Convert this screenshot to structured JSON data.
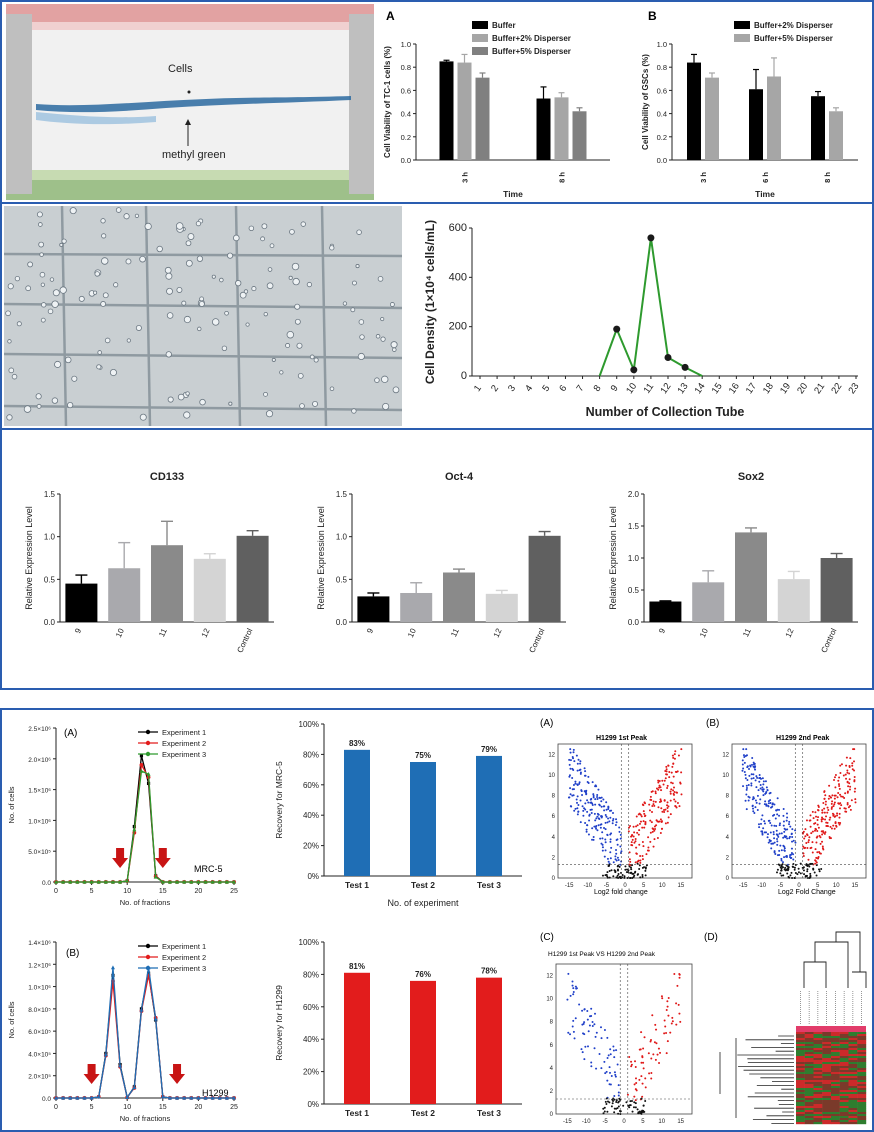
{
  "figure_top": {
    "gel_photo": {
      "cells_label": "Cells",
      "methyl_label": "methyl green"
    },
    "panelA_letter": "A",
    "panelB_letter": "B"
  },
  "figure_bottom": {
    "A_letter": "(A)",
    "B_letter": "(B)",
    "C_letter": "(C)",
    "D_letter": "(D)",
    "mrc_label": "MRC-5",
    "h1299_label": "H1299",
    "volcano_titles": [
      "H1299 1st Peak",
      "H1299 2nd Peak",
      "H1299 1st Peak VS H1299 2nd Peak"
    ],
    "volcano_xlabels": [
      "Log2 fold change",
      "Log2 Fold Change"
    ]
  },
  "colors": {
    "frame": "#2a5db0",
    "green": "#2e9a2e",
    "blue": "#1f6eb5",
    "red": "#e21c1c"
  },
  "chart_data": [
    {
      "id": "tc1",
      "type": "bar",
      "categories": [
        "3 h",
        "8 h"
      ],
      "series": [
        {
          "name": "Buffer",
          "color": "#000000",
          "values": [
            0.85,
            0.53
          ],
          "errors": [
            0.01,
            0.1
          ]
        },
        {
          "name": "Buffer+2% Disperser",
          "color": "#a6a6a6",
          "values": [
            0.84,
            0.54
          ],
          "errors": [
            0.07,
            0.04
          ]
        },
        {
          "name": "Buffer+5% Disperser",
          "color": "#808080",
          "values": [
            0.71,
            0.42
          ],
          "errors": [
            0.04,
            0.03
          ]
        }
      ],
      "xlabel": "Time",
      "ylabel": "Cell Viability of TC-1 cells (%)",
      "ylim": [
        0,
        1.0
      ],
      "yticks": [
        "0.0",
        "0.2",
        "0.4",
        "0.6",
        "0.8",
        "1.0"
      ],
      "legend": "top-right"
    },
    {
      "id": "gsc",
      "type": "bar",
      "categories": [
        "3 h",
        "6 h",
        "8 h"
      ],
      "series": [
        {
          "name": "Buffer+2% Disperser",
          "color": "#000000",
          "values": [
            0.84,
            0.61,
            0.55
          ],
          "errors": [
            0.07,
            0.17,
            0.04
          ]
        },
        {
          "name": "Buffer+5% Disperser",
          "color": "#a6a6a6",
          "values": [
            0.71,
            0.72,
            0.42
          ],
          "errors": [
            0.04,
            0.16,
            0.03
          ]
        }
      ],
      "xlabel": "Time",
      "ylabel": "Cell Viability of GSCs (%)",
      "ylim": [
        0,
        1.0
      ],
      "yticks": [
        "0.0",
        "0.2",
        "0.4",
        "0.6",
        "0.8",
        "1.0"
      ],
      "legend": "top-right"
    },
    {
      "id": "density",
      "type": "line",
      "x": [
        1,
        2,
        3,
        4,
        5,
        6,
        7,
        8,
        9,
        10,
        11,
        12,
        13,
        14,
        15,
        16,
        17,
        18,
        19,
        20,
        21,
        22,
        23
      ],
      "y": [
        0,
        0,
        0,
        0,
        0,
        0,
        0,
        0,
        190,
        25,
        560,
        75,
        35,
        0,
        0,
        0,
        0,
        0,
        0,
        0,
        0,
        0,
        0
      ],
      "marked": [
        9,
        10,
        11,
        12,
        13
      ],
      "xlabel": "Number of Collection Tube",
      "ylabel": "Cell Density (1×10⁴ cells/mL)",
      "ylim": [
        0,
        600
      ],
      "yticks": [
        "0",
        "200",
        "400",
        "600"
      ]
    },
    {
      "id": "cd133",
      "type": "bar",
      "title": "CD133",
      "categories": [
        "9",
        "10",
        "11",
        "12",
        "Control"
      ],
      "values": [
        0.45,
        0.63,
        0.9,
        0.74,
        1.01
      ],
      "errors": [
        0.1,
        0.3,
        0.28,
        0.06,
        0.06
      ],
      "colors": [
        "#000000",
        "#a9a9ad",
        "#8a8a8a",
        "#d4d4d4",
        "#606060"
      ],
      "ylabel": "Relative Expression Level",
      "ylim": [
        0,
        1.5
      ],
      "yticks": [
        "0.0",
        "0.5",
        "1.0",
        "1.5"
      ]
    },
    {
      "id": "oct4",
      "type": "bar",
      "title": "Oct-4",
      "categories": [
        "9",
        "10",
        "11",
        "12",
        "Control"
      ],
      "values": [
        0.3,
        0.34,
        0.58,
        0.33,
        1.01
      ],
      "errors": [
        0.04,
        0.12,
        0.04,
        0.04,
        0.05
      ],
      "colors": [
        "#000000",
        "#a9a9ad",
        "#8a8a8a",
        "#d4d4d4",
        "#606060"
      ],
      "ylabel": "Relative Expression Level",
      "ylim": [
        0,
        1.5
      ],
      "yticks": [
        "0.0",
        "0.5",
        "1.0",
        "1.5"
      ]
    },
    {
      "id": "sox2",
      "type": "bar",
      "title": "Sox2",
      "categories": [
        "9",
        "10",
        "11",
        "12",
        "Control"
      ],
      "values": [
        0.32,
        0.62,
        1.4,
        0.67,
        1.0
      ],
      "errors": [
        0.01,
        0.18,
        0.07,
        0.12,
        0.07
      ],
      "colors": [
        "#000000",
        "#a9a9ad",
        "#8a8a8a",
        "#d4d4d4",
        "#606060"
      ],
      "ylabel": "Relative Expression Level",
      "ylim": [
        0,
        2.0
      ],
      "yticks": [
        "0.0",
        "0.5",
        "1.0",
        "1.5",
        "2.0"
      ]
    },
    {
      "id": "mrc5",
      "type": "line",
      "x": [
        0,
        1,
        2,
        3,
        4,
        5,
        6,
        7,
        8,
        9,
        10,
        11,
        12,
        13,
        14,
        15,
        16,
        17,
        18,
        19,
        20,
        21,
        22,
        23,
        24,
        25
      ],
      "series": [
        {
          "name": "Experiment 1",
          "color": "#000000",
          "marker": "square",
          "y": [
            0,
            0,
            0,
            0,
            0,
            0,
            0,
            0,
            0,
            0,
            20000,
            900000,
            2050000,
            1600000,
            100000,
            0,
            0,
            0,
            0,
            0,
            0,
            0,
            0,
            0,
            0,
            0
          ]
        },
        {
          "name": "Experiment 2",
          "color": "#e21c1c",
          "marker": "circle",
          "y": [
            0,
            0,
            0,
            0,
            0,
            0,
            0,
            0,
            0,
            0,
            15000,
            800000,
            1900000,
            1700000,
            90000,
            0,
            0,
            0,
            0,
            0,
            0,
            0,
            0,
            0,
            0,
            0
          ]
        },
        {
          "name": "Experiment 3",
          "color": "#2e9a2e",
          "marker": "triangle",
          "y": [
            0,
            0,
            0,
            0,
            0,
            0,
            0,
            0,
            0,
            0,
            18000,
            850000,
            1800000,
            1750000,
            80000,
            0,
            0,
            0,
            0,
            0,
            0,
            0,
            0,
            0,
            0,
            0
          ]
        }
      ],
      "xlabel": "No. of fractions",
      "ylabel": "No. of cells",
      "ylim": [
        0,
        2500000
      ],
      "yticks": [
        "0.0",
        "5.0×10⁵",
        "1.0×10⁶",
        "1.5×10⁶",
        "2.0×10⁶",
        "2.5×10⁶"
      ],
      "xticks": [
        "0",
        "5",
        "10",
        "15",
        "20",
        "25"
      ],
      "arrows_at": [
        9,
        15
      ],
      "legend": "top-right"
    },
    {
      "id": "h1299curve",
      "type": "line",
      "x": [
        0,
        1,
        2,
        3,
        4,
        5,
        6,
        7,
        8,
        9,
        10,
        11,
        12,
        13,
        14,
        15,
        16,
        17,
        18,
        19,
        20,
        21,
        22,
        23,
        24,
        25
      ],
      "series": [
        {
          "name": "Experiment 1",
          "color": "#000000",
          "marker": "square",
          "y": [
            0,
            0,
            0,
            0,
            0,
            0,
            10000,
            400000,
            1100000,
            300000,
            5000,
            100000,
            800000,
            1120000,
            700000,
            10000,
            0,
            0,
            0,
            0,
            0,
            0,
            0,
            0,
            0,
            0
          ]
        },
        {
          "name": "Experiment 2",
          "color": "#e21c1c",
          "marker": "circle",
          "y": [
            0,
            0,
            0,
            0,
            0,
            0,
            10000,
            380000,
            1050000,
            280000,
            5000,
            90000,
            780000,
            1100000,
            720000,
            10000,
            0,
            0,
            0,
            0,
            0,
            0,
            0,
            0,
            0,
            0
          ]
        },
        {
          "name": "Experiment 3",
          "color": "#1f6eb5",
          "marker": "triangle",
          "y": [
            0,
            0,
            0,
            0,
            0,
            0,
            10000,
            390000,
            1170000,
            290000,
            5000,
            95000,
            790000,
            1170000,
            710000,
            10000,
            0,
            0,
            0,
            0,
            0,
            0,
            0,
            0,
            0,
            0
          ]
        }
      ],
      "xlabel": "No. of fractions",
      "ylabel": "No. of cells",
      "ylim": [
        0,
        1400000
      ],
      "yticks": [
        "0.0",
        "2.0×10⁵",
        "4.0×10⁵",
        "6.0×10⁵",
        "8.0×10⁵",
        "1.0×10⁶",
        "1.2×10⁶",
        "1.4×10⁶"
      ],
      "xticks": [
        "0",
        "5",
        "10",
        "15",
        "20",
        "25"
      ],
      "arrows_at": [
        5,
        17
      ],
      "legend": "top-right"
    },
    {
      "id": "recmrc",
      "type": "bar",
      "categories": [
        "Test 1",
        "Test 2",
        "Test 3"
      ],
      "values": [
        83,
        75,
        79
      ],
      "labels": [
        "83%",
        "75%",
        "79%"
      ],
      "color": "#1f6eb5",
      "xlabel": "No. of experiment",
      "ylabel": "Recovery for MRC-5",
      "ylim": [
        0,
        100
      ],
      "yticks": [
        "0%",
        "20%",
        "40%",
        "60%",
        "80%",
        "100%"
      ]
    },
    {
      "id": "rech1299",
      "type": "bar",
      "categories": [
        "Test 1",
        "Test 2",
        "Test 3"
      ],
      "values": [
        81,
        76,
        78
      ],
      "labels": [
        "81%",
        "76%",
        "78%"
      ],
      "color": "#e21c1c",
      "xlabel": "",
      "ylabel": "Recovery for H1299",
      "ylim": [
        0,
        100
      ],
      "yticks": [
        "0%",
        "20%",
        "40%",
        "60%",
        "80%",
        "100%"
      ]
    }
  ]
}
